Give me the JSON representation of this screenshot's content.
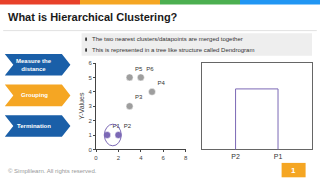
{
  "title": "What is Hierarchical Clustering?",
  "band_colors": [
    "#e8412a",
    "#f5a623",
    "#4caf50",
    "#2196f3"
  ],
  "notes": [
    "The two nearest clusters/datapoints are merged together",
    "This is represented in a tree like structure called Dendrogram"
  ],
  "steps": [
    {
      "label": "Measure the\ndistance",
      "color": "#1a5fa8"
    },
    {
      "label": "Grouping",
      "color": "#f5a623"
    },
    {
      "label": "Termination",
      "color": "#1a5fa8"
    }
  ],
  "footer": "© Simplilearn. All rights reserved.",
  "page": "1",
  "page_color": "#f5a623",
  "chart_data": [
    {
      "type": "scatter",
      "x": [
        1,
        2,
        3,
        5,
        3,
        4
      ],
      "y": [
        1,
        1,
        3,
        4,
        5,
        5
      ],
      "labels": [
        "P1",
        "P2",
        "P3",
        "P4",
        "P5",
        "P6"
      ],
      "colors": [
        "#7b68b5",
        "#7b68b5",
        "#9e9e9e",
        "#9e9e9e",
        "#9e9e9e",
        "#9e9e9e"
      ],
      "ylabel": "Y-Values",
      "xlim": [
        0,
        8
      ],
      "xticks": [
        0,
        2,
        4,
        6,
        8
      ],
      "ylim": [
        0,
        6
      ],
      "yticks": [
        0,
        1,
        2,
        3,
        4,
        5,
        6
      ],
      "grid": false,
      "circle": {
        "x": 1.5,
        "y": 1,
        "r": 0.75,
        "color": "#7b68b5"
      }
    },
    {
      "type": "dendrogram",
      "leaves": [
        "P2",
        "P1"
      ],
      "color": "#7b68b5"
    }
  ]
}
